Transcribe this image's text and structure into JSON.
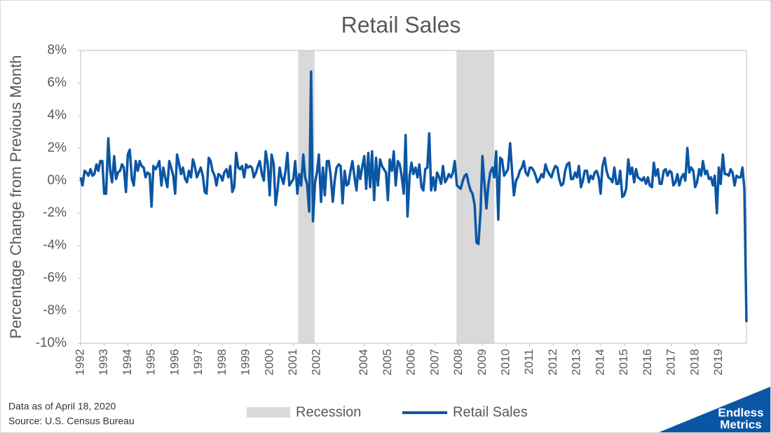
{
  "chart_data": {
    "type": "line",
    "title": "Retail Sales",
    "y_label": "Percentage Change from Previous Month",
    "xlim": [
      1992,
      2020.17
    ],
    "xticks": [
      1992,
      1993,
      1994,
      1995,
      1996,
      1997,
      1998,
      1999,
      2000,
      2001,
      2002,
      2004,
      2005,
      2006,
      2007,
      2008,
      2009,
      2010,
      2011,
      2012,
      2013,
      2014,
      2015,
      2016,
      2017,
      2018,
      2019
    ],
    "ylim": [
      -10,
      8
    ],
    "yticks": [
      {
        "value": -10,
        "label": "-10%"
      },
      {
        "value": -8,
        "label": "-8%"
      },
      {
        "value": -6,
        "label": "-6%"
      },
      {
        "value": -4,
        "label": "-4%"
      },
      {
        "value": -2,
        "label": "-2%"
      },
      {
        "value": 0,
        "label": "0%"
      },
      {
        "value": 2,
        "label": "2%"
      },
      {
        "value": 4,
        "label": "4%"
      },
      {
        "value": 6,
        "label": "6%"
      },
      {
        "value": 8,
        "label": "8%"
      }
    ],
    "grid": false,
    "recessions": {
      "name": "Recession",
      "color": "#d9d9d9",
      "ranges": [
        [
          2001.2,
          2001.9
        ],
        [
          2007.9,
          2009.5
        ]
      ]
    },
    "x": [
      1992,
      1992.08,
      1992.17,
      1992.25,
      1992.33,
      1992.42,
      1992.5,
      1992.58,
      1992.67,
      1992.75,
      1992.83,
      1992.92,
      1993,
      1993.08,
      1993.17,
      1993.25,
      1993.33,
      1993.42,
      1993.5,
      1993.58,
      1993.67,
      1993.75,
      1993.83,
      1993.92,
      1994,
      1994.08,
      1994.17,
      1994.25,
      1994.33,
      1994.42,
      1994.5,
      1994.58,
      1994.67,
      1994.75,
      1994.83,
      1994.92,
      1995,
      1995.08,
      1995.17,
      1995.25,
      1995.33,
      1995.42,
      1995.5,
      1995.58,
      1995.67,
      1995.75,
      1995.83,
      1995.92,
      1996,
      1996.08,
      1996.17,
      1996.25,
      1996.33,
      1996.42,
      1996.5,
      1996.58,
      1996.67,
      1996.75,
      1996.83,
      1996.92,
      1997,
      1997.08,
      1997.17,
      1997.25,
      1997.33,
      1997.42,
      1997.5,
      1997.58,
      1997.67,
      1997.75,
      1997.83,
      1997.92,
      1998,
      1998.08,
      1998.17,
      1998.25,
      1998.33,
      1998.42,
      1998.5,
      1998.58,
      1998.67,
      1998.75,
      1998.83,
      1998.92,
      1999,
      1999.08,
      1999.17,
      1999.25,
      1999.33,
      1999.42,
      1999.5,
      1999.58,
      1999.67,
      1999.75,
      1999.83,
      1999.92,
      2000,
      2000.08,
      2000.17,
      2000.25,
      2000.33,
      2000.42,
      2000.5,
      2000.58,
      2000.67,
      2000.75,
      2000.83,
      2000.92,
      2001,
      2001.08,
      2001.17,
      2001.25,
      2001.33,
      2001.42,
      2001.5,
      2001.58,
      2001.67,
      2001.75,
      2001.83,
      2001.92,
      2002,
      2002.08,
      2002.17,
      2002.25,
      2002.33,
      2002.42,
      2002.5,
      2002.58,
      2002.67,
      2002.75,
      2002.83,
      2002.92,
      2003,
      2003.08,
      2003.17,
      2003.25,
      2003.33,
      2003.42,
      2003.5,
      2003.58,
      2003.67,
      2003.75,
      2003.83,
      2003.92,
      2004,
      2004.08,
      2004.17,
      2004.25,
      2004.33,
      2004.42,
      2004.5,
      2004.58,
      2004.67,
      2004.75,
      2004.83,
      2004.92,
      2005,
      2005.08,
      2005.17,
      2005.25,
      2005.33,
      2005.42,
      2005.5,
      2005.58,
      2005.67,
      2005.75,
      2005.83,
      2005.92,
      2006,
      2006.08,
      2006.17,
      2006.25,
      2006.33,
      2006.42,
      2006.5,
      2006.58,
      2006.67,
      2006.75,
      2006.83,
      2006.92,
      2007,
      2007.08,
      2007.17,
      2007.25,
      2007.33,
      2007.42,
      2007.5,
      2007.58,
      2007.67,
      2007.75,
      2007.83,
      2007.92,
      2008,
      2008.08,
      2008.17,
      2008.25,
      2008.33,
      2008.42,
      2008.5,
      2008.58,
      2008.67,
      2008.75,
      2008.83,
      2008.92,
      2009,
      2009.08,
      2009.17,
      2009.25,
      2009.33,
      2009.42,
      2009.5,
      2009.58,
      2009.67,
      2009.75,
      2009.83,
      2009.92,
      2010,
      2010.08,
      2010.17,
      2010.25,
      2010.33,
      2010.42,
      2010.5,
      2010.58,
      2010.67,
      2010.75,
      2010.83,
      2010.92,
      2011,
      2011.08,
      2011.17,
      2011.25,
      2011.33,
      2011.42,
      2011.5,
      2011.58,
      2011.67,
      2011.75,
      2011.83,
      2011.92,
      2012,
      2012.08,
      2012.17,
      2012.25,
      2012.33,
      2012.42,
      2012.5,
      2012.58,
      2012.67,
      2012.75,
      2012.83,
      2012.92,
      2013,
      2013.08,
      2013.17,
      2013.25,
      2013.33,
      2013.42,
      2013.5,
      2013.58,
      2013.67,
      2013.75,
      2013.83,
      2013.92,
      2014,
      2014.08,
      2014.17,
      2014.25,
      2014.33,
      2014.42,
      2014.5,
      2014.58,
      2014.67,
      2014.75,
      2014.83,
      2014.92,
      2015,
      2015.08,
      2015.17,
      2015.25,
      2015.33,
      2015.42,
      2015.5,
      2015.58,
      2015.67,
      2015.75,
      2015.83,
      2015.92,
      2016,
      2016.08,
      2016.17,
      2016.25,
      2016.33,
      2016.42,
      2016.5,
      2016.58,
      2016.67,
      2016.75,
      2016.83,
      2016.92,
      2017,
      2017.08,
      2017.17,
      2017.25,
      2017.33,
      2017.42,
      2017.5,
      2017.58,
      2017.67,
      2017.75,
      2017.83,
      2017.92,
      2018,
      2018.08,
      2018.17,
      2018.25,
      2018.33,
      2018.42,
      2018.5,
      2018.58,
      2018.67,
      2018.75,
      2018.83,
      2018.92,
      2019,
      2019.08,
      2019.17,
      2019.25,
      2019.33,
      2019.42,
      2019.5,
      2019.58,
      2019.67,
      2019.75,
      2019.83,
      2019.92,
      2020,
      2020.08,
      2020.17
    ],
    "series": [
      {
        "name": "Retail Sales",
        "color": "#0b56a4",
        "values": [
          0.2,
          -0.3,
          0.6,
          0.5,
          0.3,
          0.7,
          0.3,
          0.4,
          1.0,
          0.6,
          1.2,
          1.2,
          -0.8,
          -0.8,
          2.6,
          0.6,
          -0.1,
          1.5,
          0.1,
          0.5,
          0.6,
          1.0,
          0.8,
          -0.7,
          1.6,
          1.9,
          0.1,
          -0.3,
          1.2,
          0.6,
          1.2,
          0.9,
          0.8,
          0.2,
          0.5,
          0.4,
          -1.6,
          0.9,
          0.7,
          0.9,
          1.2,
          -0.3,
          0.8,
          0.2,
          -0.4,
          1.2,
          0.8,
          0.3,
          -0.8,
          1.6,
          1.0,
          0.4,
          0.8,
          0.1,
          -0.1,
          0.6,
          0.2,
          1.3,
          0.9,
          0.2,
          0.5,
          0.8,
          0.3,
          -0.7,
          -0.8,
          1.4,
          1.2,
          0.6,
          0.3,
          -0.3,
          0.4,
          0.3,
          0.0,
          0.5,
          0.7,
          0.2,
          0.9,
          -0.7,
          -0.4,
          1.7,
          0.8,
          0.7,
          0.9,
          0.2,
          1.0,
          0.8,
          0.9,
          0.8,
          0.2,
          0.5,
          0.9,
          1.2,
          0.4,
          0.0,
          1.8,
          1.0,
          -0.9,
          1.6,
          1.0,
          -1.5,
          -0.6,
          0.8,
          0.2,
          -0.2,
          0.6,
          1.7,
          -0.3,
          -0.1,
          0.1,
          1.2,
          -0.8,
          0.4,
          -0.3,
          1.6,
          0.2,
          -0.2,
          -1.9,
          6.7,
          -2.5,
          -0.1,
          0.5,
          1.6,
          -1.3,
          0.8,
          -0.9,
          1.2,
          1.2,
          0.3,
          -1.3,
          0.0,
          0.8,
          1.0,
          0.9,
          -1.4,
          0.6,
          -0.3,
          -0.2,
          0.6,
          1.2,
          0.3,
          -0.6,
          0.9,
          0.1,
          0.9,
          1.5,
          -0.5,
          1.7,
          -0.4,
          1.8,
          -1.2,
          1.4,
          -0.3,
          1.3,
          0.9,
          0.7,
          0.5,
          -1.2,
          1.3,
          0.6,
          1.8,
          -0.3,
          1.2,
          1.0,
          0.3,
          -0.8,
          2.8,
          -2.2,
          0.3,
          1.1,
          0.4,
          0.8,
          0.2,
          1.0,
          -0.4,
          -0.6,
          0.7,
          0.8,
          2.9,
          -0.6,
          0.2,
          -0.6,
          0.5,
          0.2,
          -0.2,
          0.9,
          -0.1,
          0.1,
          0.4,
          0.2,
          0.5,
          1.2,
          -0.3,
          -0.4,
          -0.5,
          0.0,
          0.3,
          0.4,
          -0.2,
          -0.6,
          -0.8,
          -1.5,
          -3.8,
          -3.9,
          -1.9,
          1.5,
          -0.1,
          -1.7,
          -0.3,
          0.5,
          0.8,
          0.2,
          1.8,
          -2.4,
          1.4,
          1.3,
          0.3,
          0.5,
          0.7,
          2.3,
          0.6,
          -0.9,
          0.0,
          0.2,
          0.6,
          0.8,
          1.2,
          0.5,
          0.3,
          0.8,
          0.8,
          0.6,
          0.3,
          -0.1,
          0.1,
          0.4,
          0.2,
          1.0,
          0.6,
          0.4,
          0.2,
          0.6,
          0.9,
          0.8,
          0.1,
          -0.3,
          -0.2,
          0.6,
          1.0,
          1.1,
          0.1,
          0.1,
          0.5,
          0.2,
          0.9,
          -0.4,
          0.0,
          0.6,
          0.6,
          -0.1,
          0.3,
          0.1,
          0.5,
          0.6,
          0.2,
          -0.8,
          0.9,
          1.4,
          0.6,
          0.2,
          0.1,
          -0.1,
          0.8,
          -0.2,
          -0.2,
          0.6,
          -1.0,
          -0.9,
          -0.5,
          1.3,
          0.4,
          0.8,
          -0.1,
          0.7,
          0.2,
          0.1,
          0.0,
          0.2,
          -0.2,
          0.2,
          -0.3,
          -0.4,
          1.1,
          0.3,
          0.7,
          -0.2,
          -0.2,
          0.6,
          0.7,
          0.3,
          0.6,
          0.5,
          -0.3,
          -0.1,
          0.4,
          -0.3,
          0.2,
          0.4,
          0.0,
          2.0,
          0.5,
          0.8,
          0.6,
          -0.4,
          -0.1,
          0.7,
          0.3,
          1.2,
          0.4,
          0.6,
          0.1,
          0.2,
          -0.3,
          0.3,
          -2.0,
          0.8,
          -0.2,
          1.6,
          0.4,
          0.4,
          0.3,
          0.7,
          0.5,
          -0.3,
          0.3,
          0.2,
          0.2,
          0.8,
          -0.5,
          -8.7
        ]
      }
    ],
    "notes": [
      "Data as of April 18, 2020",
      "Source: U.S. Census Bureau"
    ],
    "logo": [
      "Endless",
      "Metrics"
    ]
  }
}
